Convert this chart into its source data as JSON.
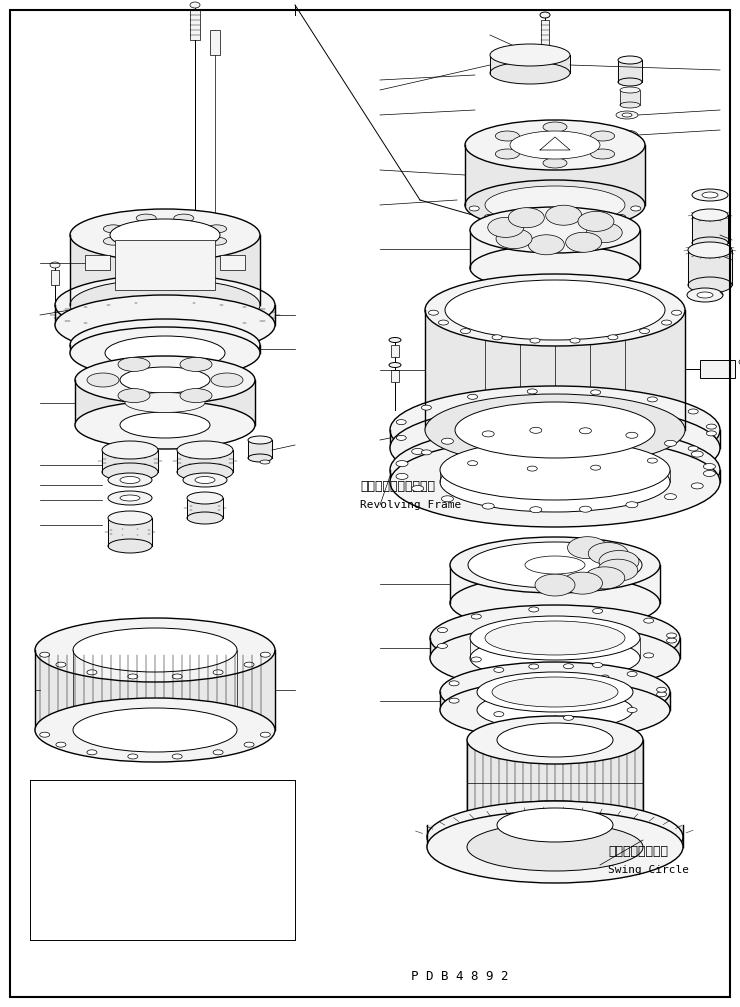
{
  "figure_width": 7.4,
  "figure_height": 10.07,
  "dpi": 100,
  "background_color": "#ffffff",
  "border_color": "#000000",
  "label_revolving_frame_jp": "レボルビングフレーム",
  "label_revolving_frame_en": "Revolving Frame",
  "label_swing_circle_jp": "スイングサークル",
  "label_swing_circle_en": "Swing Circle",
  "label_pdb": "P D B 4 8 9 2",
  "text_color": "#000000",
  "line_color": "#000000",
  "font_size_jp": 9,
  "font_size_en": 8,
  "font_size_pdb": 9
}
